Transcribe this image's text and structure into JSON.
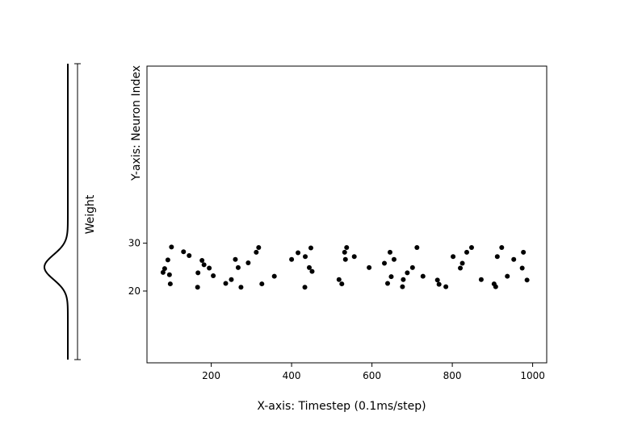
{
  "chart_data": {
    "type": "scatter",
    "title": "",
    "xlabel": "X-axis: Timestep (0.1ms/step)",
    "ylabel": "Y-axis: Neuron Index",
    "xlim": [
      40,
      1035
    ],
    "ylim": [
      5,
      67
    ],
    "xticks": [
      200,
      400,
      600,
      800,
      1000
    ],
    "yticks": [
      20,
      30
    ],
    "xtick_labels": [
      "200",
      "400",
      "600",
      "800",
      "1000"
    ],
    "ytick_labels": [
      "20",
      "30"
    ],
    "grid": false,
    "marker_color": "#000000",
    "x": [
      80,
      84,
      92,
      96,
      98,
      101,
      131,
      145,
      166,
      167,
      177,
      182,
      195,
      205,
      236,
      250,
      260,
      267,
      274,
      292,
      312,
      318,
      326,
      357,
      400,
      416,
      433,
      434,
      444,
      448,
      451,
      518,
      525,
      532,
      534,
      537,
      556,
      593,
      631,
      639,
      645,
      648,
      655,
      676,
      678,
      688,
      701,
      712,
      727,
      763,
      767,
      784,
      802,
      820,
      825,
      836,
      848,
      872,
      904,
      908,
      912,
      923,
      937,
      953,
      974,
      977,
      986
    ],
    "y": [
      23.9,
      24.7,
      26.5,
      23.4,
      21.5,
      29.2,
      28.2,
      27.4,
      20.8,
      23.8,
      26.4,
      25.5,
      24.8,
      23.2,
      21.6,
      22.4,
      26.6,
      24.9,
      20.8,
      25.9,
      28.1,
      29.1,
      21.5,
      23.1,
      26.6,
      28.0,
      20.8,
      27.2,
      24.9,
      29.0,
      24.1,
      22.4,
      21.5,
      28.1,
      26.6,
      29.1,
      27.2,
      24.9,
      25.8,
      21.6,
      28.1,
      23.0,
      26.6,
      20.9,
      22.4,
      23.8,
      24.9,
      29.1,
      23.1,
      22.3,
      21.4,
      20.9,
      27.2,
      24.8,
      25.8,
      28.1,
      29.1,
      22.4,
      21.5,
      20.9,
      27.2,
      29.1,
      23.1,
      26.6,
      24.8,
      28.1,
      22.3
    ],
    "weight_panel": {
      "label": "Weight",
      "curve": "gaussian",
      "center_neuron": 25,
      "sigma_neurons": 2.6
    }
  }
}
